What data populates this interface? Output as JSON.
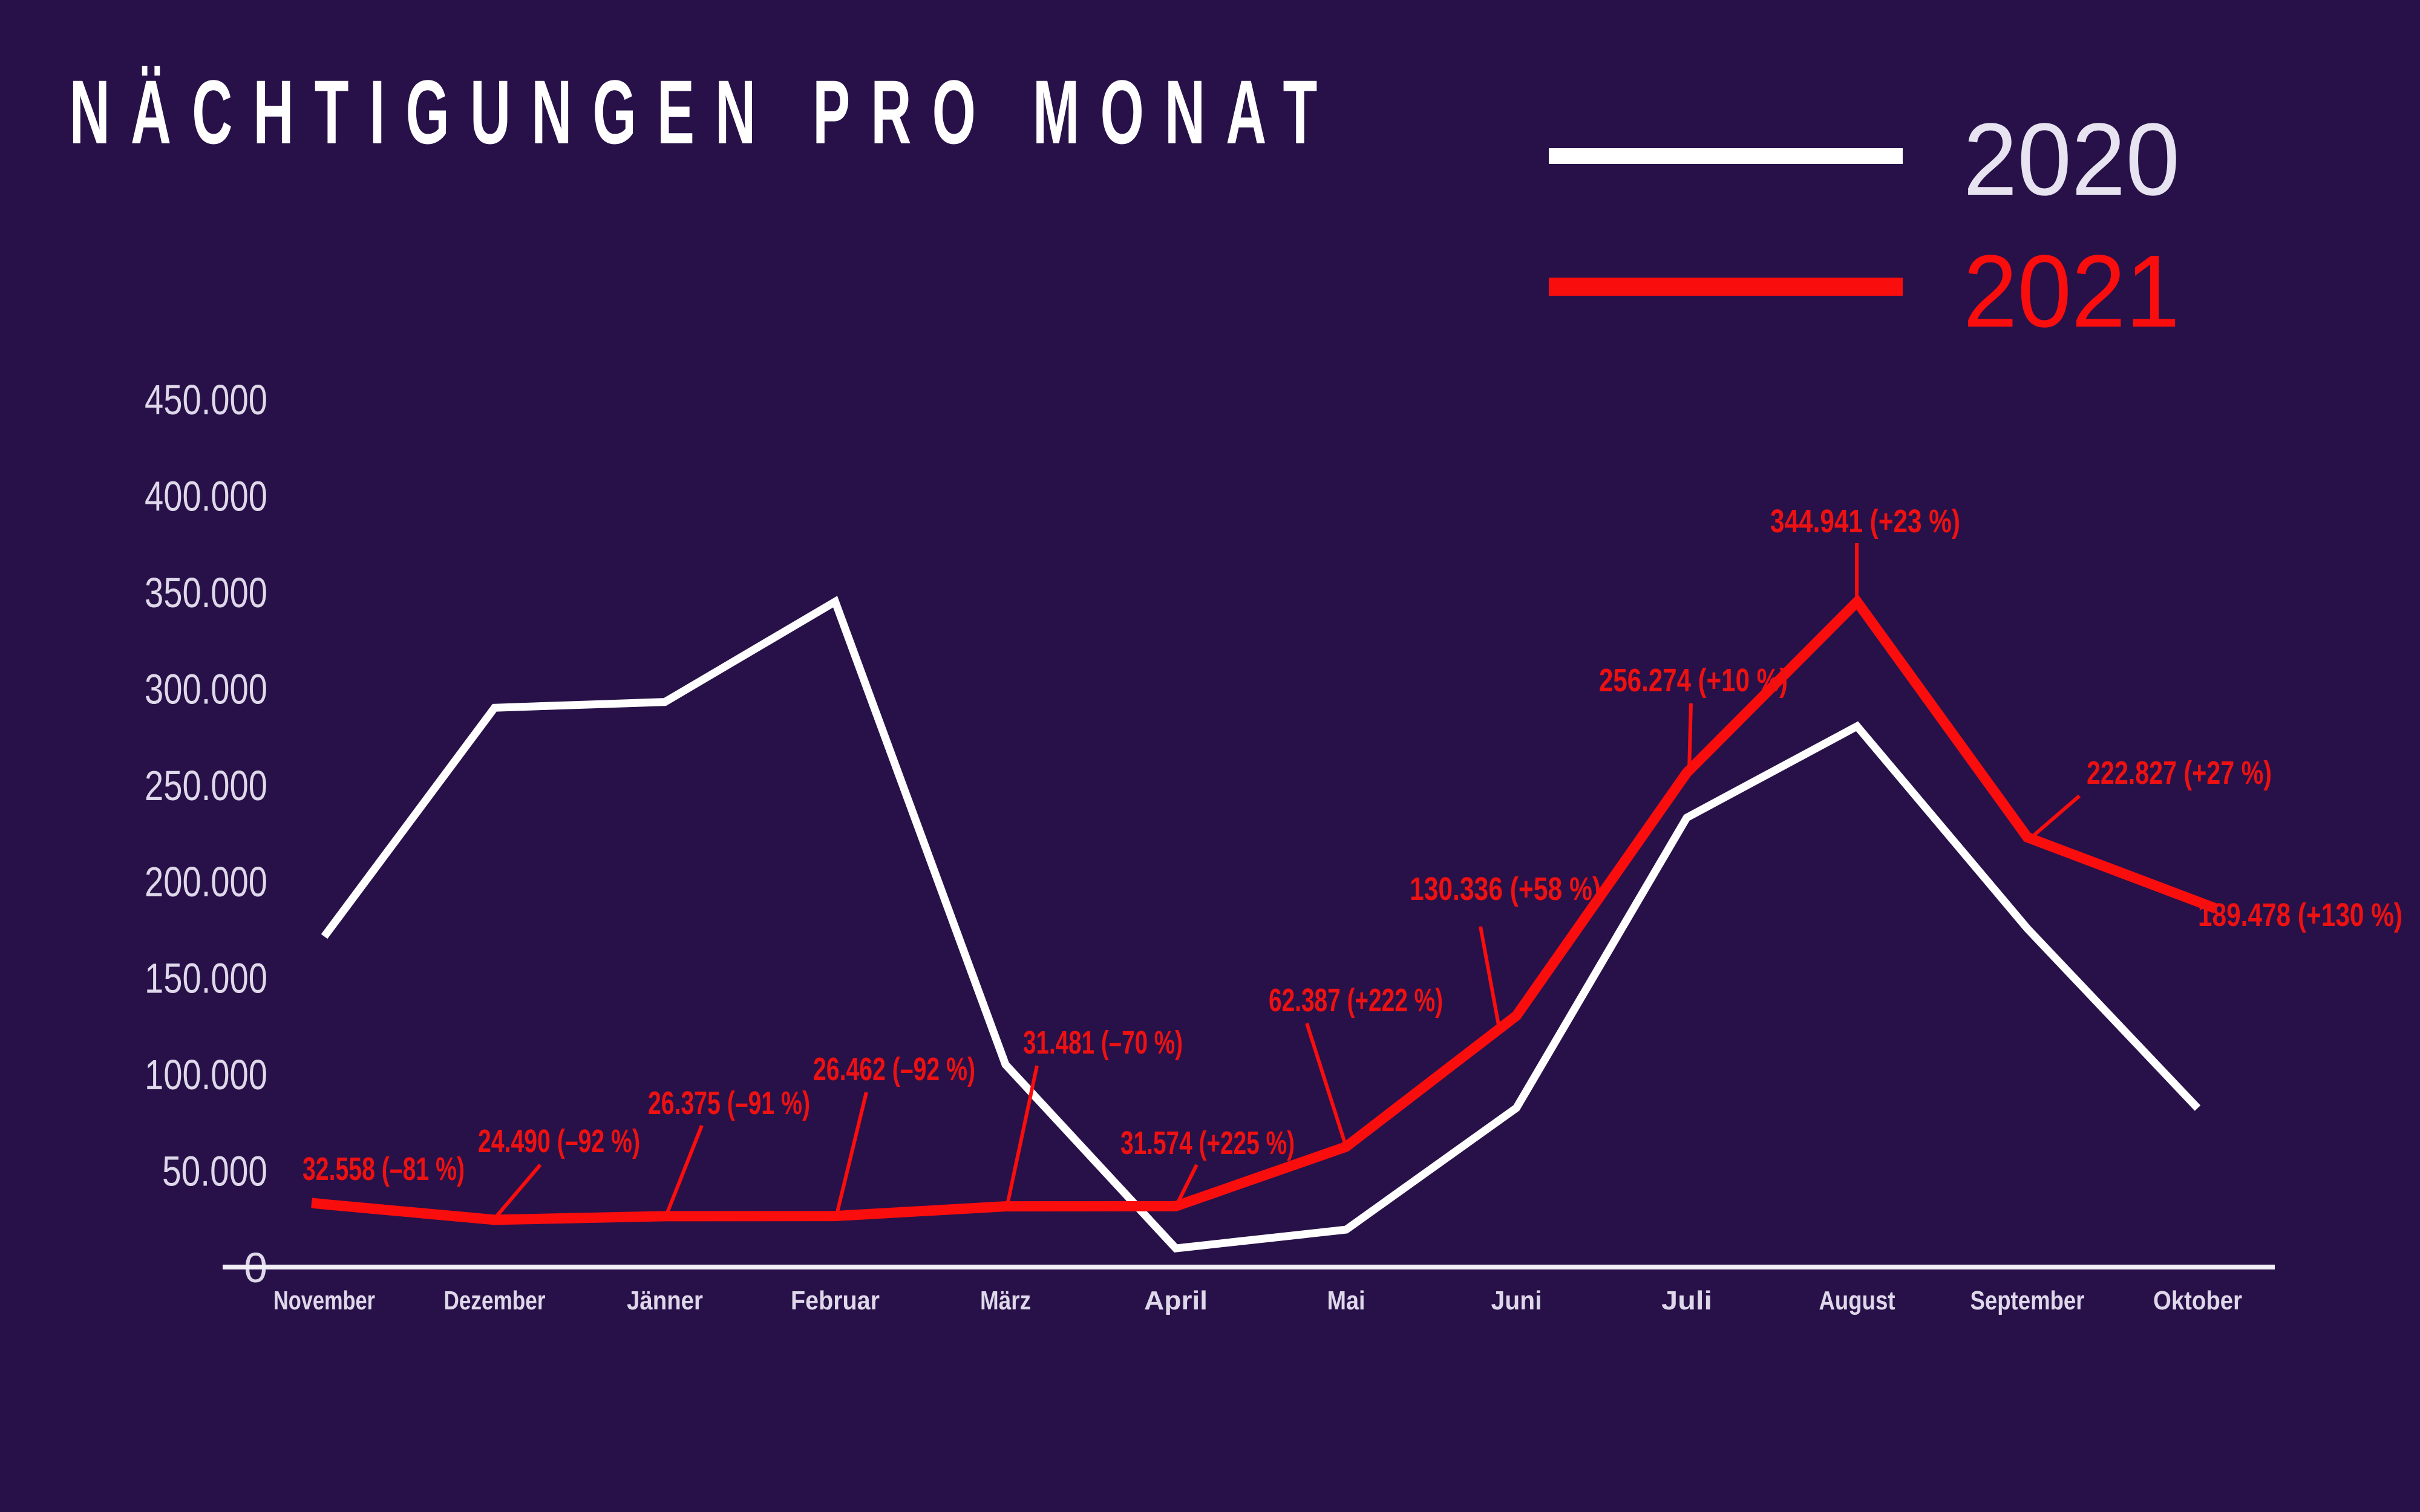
{
  "title": "NÄCHTIGUNGEN PRO MONAT",
  "colors": {
    "background": "#281148",
    "line_2020": "#ffffff",
    "line_2021": "#fa0d0d",
    "axis_text": "#ded8ea",
    "axis_line": "#f2eff7",
    "annotation_red": "#ee1111"
  },
  "legend": {
    "items": [
      {
        "label": "2020",
        "swatch_color": "#ffffff",
        "text_color": "#e7e3f0"
      },
      {
        "label": "2021",
        "swatch_color": "#fa0d0d",
        "text_color": "#fa0d0d"
      }
    ]
  },
  "chart_data": {
    "type": "line",
    "title": "NÄCHTIGUNGEN PRO MONAT",
    "categories": [
      "November",
      "Dezember",
      "Jänner",
      "Februar",
      "März",
      "April",
      "Mai",
      "Juni",
      "Juli",
      "August",
      "September",
      "Oktober"
    ],
    "y_tick_labels": [
      "0",
      "50.000",
      "100.000",
      "150.000",
      "200.000",
      "250.000",
      "300.000",
      "350.000",
      "400.000",
      "450.000"
    ],
    "ylim": [
      0,
      450000
    ],
    "grid": false,
    "legend_position": "top-right",
    "series": [
      {
        "name": "2020",
        "color": "#ffffff",
        "values": [
          171400,
          290000,
          293000,
          345000,
          105000,
          9700,
          19400,
          82500,
          233000,
          280400,
          175500,
          82400
        ]
      },
      {
        "name": "2021",
        "color": "#fa0d0d",
        "values": [
          32558,
          24490,
          26375,
          26462,
          31481,
          31574,
          62387,
          130336,
          256274,
          344941,
          222827,
          189478
        ]
      }
    ],
    "annotations": [
      {
        "month": "November",
        "series": "2021",
        "text": "32.558 (–81 %)"
      },
      {
        "month": "Dezember",
        "series": "2021",
        "text": "24.490 (–92 %)"
      },
      {
        "month": "Jänner",
        "series": "2021",
        "text": "26.375 (–91 %)"
      },
      {
        "month": "Februar",
        "series": "2021",
        "text": "26.462 (–92 %)"
      },
      {
        "month": "März",
        "series": "2021",
        "text": "31.481 (–70 %)"
      },
      {
        "month": "April",
        "series": "2021",
        "text": "31.574 (+225 %)"
      },
      {
        "month": "Mai",
        "series": "2021",
        "text": "62.387 (+222 %)"
      },
      {
        "month": "Juni",
        "series": "2021",
        "text": "130.336 (+58 %)"
      },
      {
        "month": "Juli",
        "series": "2021",
        "text": "256.274 (+10 %)"
      },
      {
        "month": "August",
        "series": "2021",
        "text": "344.941 (+23 %)"
      },
      {
        "month": "September",
        "series": "2021",
        "text": "222.827 (+27 %)"
      },
      {
        "month": "Oktober",
        "series": "2021",
        "text": "189.478 (+130 %)"
      }
    ]
  }
}
